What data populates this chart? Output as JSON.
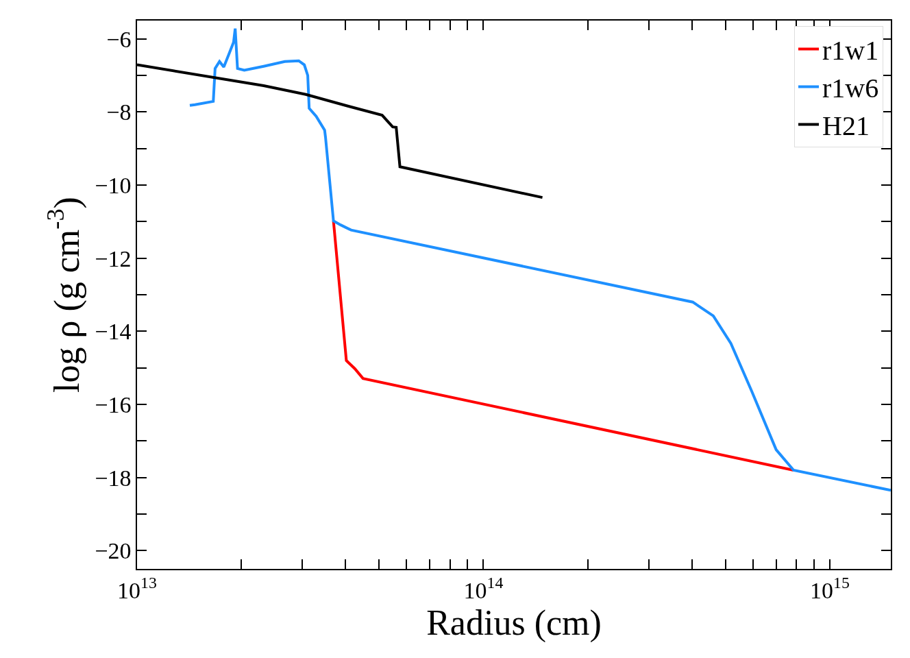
{
  "chart_data": {
    "type": "line",
    "xlabel": "Radius (cm)",
    "ylabel": "log ρ (g cm$^{-3}$)",
    "log": "x",
    "xlim": [
      10000000000000.0,
      1500000000000000.0
    ],
    "ylim": [
      -20.5,
      -5.5
    ],
    "xticks": [
      {
        "value": 10000000000000.0,
        "label": "10$^{13}$"
      },
      {
        "value": 20000000000000.0,
        "label": null
      },
      {
        "value": 30000000000000.0,
        "label": null
      },
      {
        "value": 40000000000000.0,
        "label": null
      },
      {
        "value": 50000000000000.0,
        "label": null
      },
      {
        "value": 60000000000000.0,
        "label": null
      },
      {
        "value": 70000000000000.0,
        "label": null
      },
      {
        "value": 80000000000000.0,
        "label": null
      },
      {
        "value": 90000000000000.0,
        "label": null
      },
      {
        "value": 100000000000000.0,
        "label": "10$^{14}$"
      },
      {
        "value": 200000000000000.0,
        "label": null
      },
      {
        "value": 300000000000000.0,
        "label": null
      },
      {
        "value": 400000000000000.0,
        "label": null
      },
      {
        "value": 500000000000000.0,
        "label": null
      },
      {
        "value": 600000000000000.0,
        "label": null
      },
      {
        "value": 700000000000000.0,
        "label": null
      },
      {
        "value": 800000000000000.0,
        "label": null
      },
      {
        "value": 900000000000000.0,
        "label": null
      },
      {
        "value": 1000000000000000.0,
        "label": "10$^{15}$"
      }
    ],
    "yticks": [
      {
        "value": -20,
        "label": "−20"
      },
      {
        "value": -19,
        "label": null
      },
      {
        "value": -18,
        "label": "−18"
      },
      {
        "value": -17,
        "label": null
      },
      {
        "value": -16,
        "label": "−16"
      },
      {
        "value": -15,
        "label": null
      },
      {
        "value": -14,
        "label": "−14"
      },
      {
        "value": -13,
        "label": null
      },
      {
        "value": -12,
        "label": "−12"
      },
      {
        "value": -11,
        "label": null
      },
      {
        "value": -10,
        "label": "−10"
      },
      {
        "value": -9,
        "label": null
      },
      {
        "value": -8,
        "label": "−8"
      },
      {
        "value": -7,
        "label": null
      },
      {
        "value": -6,
        "label": "−6"
      }
    ],
    "legend": "top right",
    "line_style": "solid",
    "series": [
      {
        "name": "r1w1",
        "color": "#ff0000",
        "x": [
          36900000000000.0,
          40200000000000.0,
          42500000000000.0,
          44900000000000.0,
          786000000000000.0
        ],
        "values": [
          -10.98,
          -14.8,
          -15.02,
          -15.29,
          -17.8
        ]
      },
      {
        "name": "r1w6",
        "color": "#1e90ff",
        "x": [
          14200000000000.0,
          14700000000000.0,
          16600000000000.0,
          16800000000000.0,
          17300000000000.0,
          17800000000000.0,
          18400000000000.0,
          19000000000000.0,
          19200000000000.0,
          19500000000000.0,
          20400000000000.0,
          23200000000000.0,
          26700000000000.0,
          29300000000000.0,
          30400000000000.0,
          31100000000000.0,
          31400000000000.0,
          32900000000000.0,
          34800000000000.0,
          35000000000000.0,
          36000000000000.0,
          36900000000000.0,
          38700000000000.0,
          41500000000000.0,
          402000000000000.0,
          461000000000000.0,
          518000000000000.0,
          595000000000000.0,
          700000000000000.0,
          786000000000000.0,
          1500000000000000.0
        ],
        "values": [
          -7.82,
          -7.8,
          -7.71,
          -6.81,
          -6.62,
          -6.77,
          -6.43,
          -6.09,
          -5.72,
          -6.81,
          -6.86,
          -6.75,
          -6.62,
          -6.6,
          -6.71,
          -7.0,
          -7.9,
          -8.12,
          -8.5,
          -8.69,
          -9.91,
          -10.98,
          -11.09,
          -11.23,
          -13.2,
          -13.58,
          -14.33,
          -15.64,
          -17.24,
          -17.8,
          -18.35
        ]
      },
      {
        "name": "H21",
        "color": "#000000",
        "x": [
          10000000000000.0,
          23200000000000.0,
          30700000000000.0,
          40600000000000.0,
          51000000000000.0,
          54700000000000.0,
          56000000000000.0,
          57400000000000.0,
          148000000000000.0
        ],
        "values": [
          -6.71,
          -7.28,
          -7.52,
          -7.84,
          -8.09,
          -8.41,
          -8.42,
          -9.5,
          -10.34
        ]
      }
    ]
  }
}
